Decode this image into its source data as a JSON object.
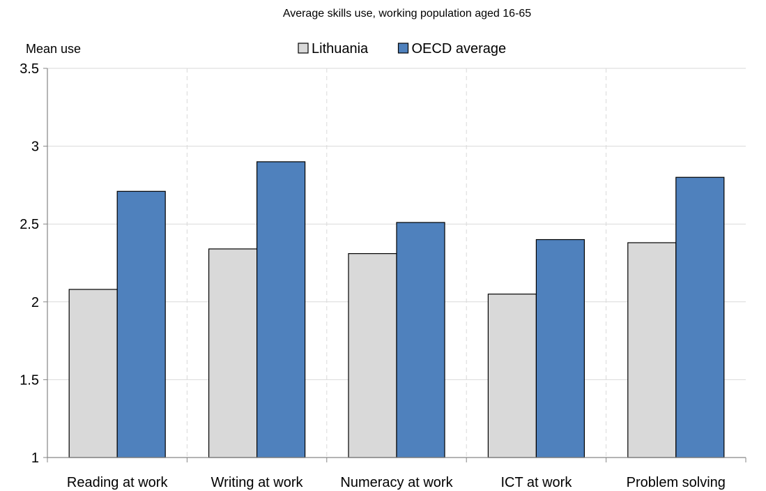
{
  "chart_data": {
    "type": "bar",
    "title": "Average skills use, working population aged 16-65",
    "ylabel": "Mean use",
    "xlabel": "",
    "categories": [
      "Reading at work",
      "Writing at work",
      "Numeracy at work",
      "ICT at work",
      "Problem solving"
    ],
    "series": [
      {
        "name": "Lithuania",
        "color": "#d9d9d9",
        "values": [
          2.08,
          2.34,
          2.31,
          2.05,
          2.38
        ]
      },
      {
        "name": "OECD average",
        "color": "#4f81bd",
        "values": [
          2.71,
          2.9,
          2.51,
          2.4,
          2.8
        ]
      }
    ],
    "ylim": [
      1,
      3.5
    ],
    "yticks": [
      "1",
      "1.5",
      "2",
      "2.5",
      "3",
      "3.5"
    ],
    "grid": true,
    "legend_position": "top-center"
  }
}
